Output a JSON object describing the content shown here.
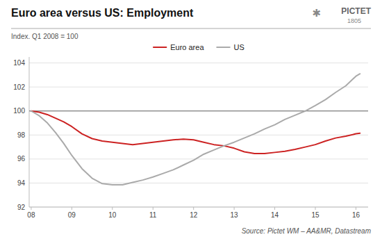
{
  "chart_data": {
    "type": "line",
    "title": "Euro area versus US: Employment",
    "subtitle": "Index. Q1 2008 = 100",
    "annotations": [
      "Source: Pictet WM – AA&MR, Datastream",
      "PICTET",
      "1805",
      "✱"
    ],
    "x": [
      2008.0,
      2008.2,
      2008.4,
      2008.6,
      2008.8,
      2009.0,
      2009.25,
      2009.5,
      2009.75,
      2010.0,
      2010.25,
      2010.5,
      2010.75,
      2011.0,
      2011.25,
      2011.5,
      2011.75,
      2012.0,
      2012.25,
      2012.5,
      2012.75,
      2013.0,
      2013.25,
      2013.5,
      2013.75,
      2014.0,
      2014.25,
      2014.5,
      2014.75,
      2015.0,
      2015.25,
      2015.5,
      2015.75,
      2016.0,
      2016.1
    ],
    "series": [
      {
        "name": "Euro area",
        "color": "#cc2222",
        "values": [
          100.0,
          99.9,
          99.7,
          99.4,
          99.1,
          98.7,
          98.1,
          97.7,
          97.5,
          97.4,
          97.3,
          97.2,
          97.3,
          97.4,
          97.5,
          97.6,
          97.65,
          97.6,
          97.4,
          97.2,
          97.1,
          96.9,
          96.6,
          96.45,
          96.45,
          96.55,
          96.65,
          96.8,
          97.0,
          97.2,
          97.5,
          97.75,
          97.9,
          98.1,
          98.15
        ]
      },
      {
        "name": "US",
        "color": "#aaaaaa",
        "values": [
          100.0,
          99.6,
          99.0,
          98.2,
          97.3,
          96.3,
          95.2,
          94.4,
          93.95,
          93.85,
          93.85,
          94.05,
          94.25,
          94.5,
          94.8,
          95.1,
          95.5,
          95.9,
          96.4,
          96.75,
          97.1,
          97.4,
          97.75,
          98.1,
          98.5,
          98.85,
          99.3,
          99.65,
          100.0,
          100.45,
          100.95,
          101.55,
          102.1,
          102.9,
          103.1
        ]
      }
    ],
    "reference_line": {
      "value": 100,
      "color": "#666666"
    },
    "xlim": [
      2007.95,
      2016.3
    ],
    "xticks": [
      {
        "value": 2008,
        "label": "08"
      },
      {
        "value": 2009,
        "label": "09"
      },
      {
        "value": 2010,
        "label": "10"
      },
      {
        "value": 2011,
        "label": "11"
      },
      {
        "value": 2012,
        "label": "12"
      },
      {
        "value": 2013,
        "label": "13"
      },
      {
        "value": 2014,
        "label": "14"
      },
      {
        "value": 2015,
        "label": "15"
      },
      {
        "value": 2016,
        "label": "16"
      }
    ],
    "ylim": [
      92,
      104.5
    ],
    "yticks": [
      92,
      94,
      96,
      98,
      100,
      102,
      104
    ],
    "grid": true,
    "legend": "top"
  }
}
